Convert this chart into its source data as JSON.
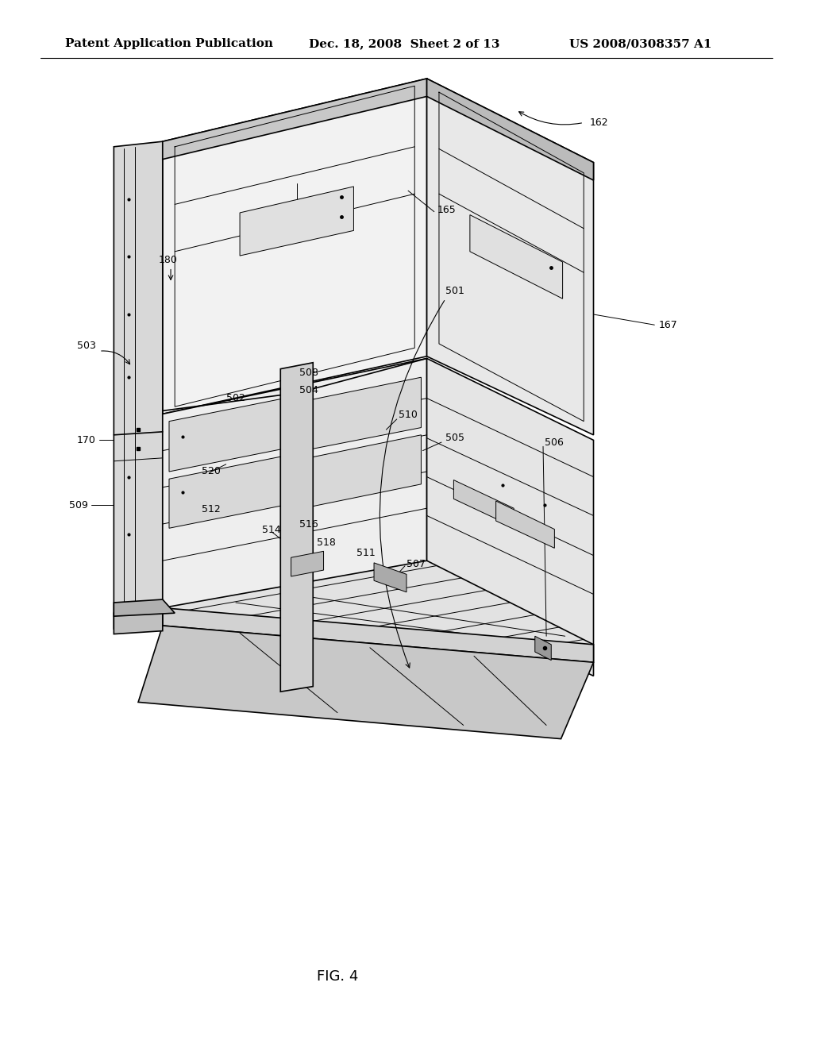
{
  "bg_color": "#ffffff",
  "header_left": "Patent Application Publication",
  "header_mid": "Dec. 18, 2008  Sheet 2 of 13",
  "header_right": "US 2008/0308357 A1",
  "figure_label": "FIG. 4",
  "line_color": "#000000",
  "text_color": "#000000",
  "header_fontsize": 11,
  "label_fontsize": 9,
  "fig_label_fontsize": 13
}
